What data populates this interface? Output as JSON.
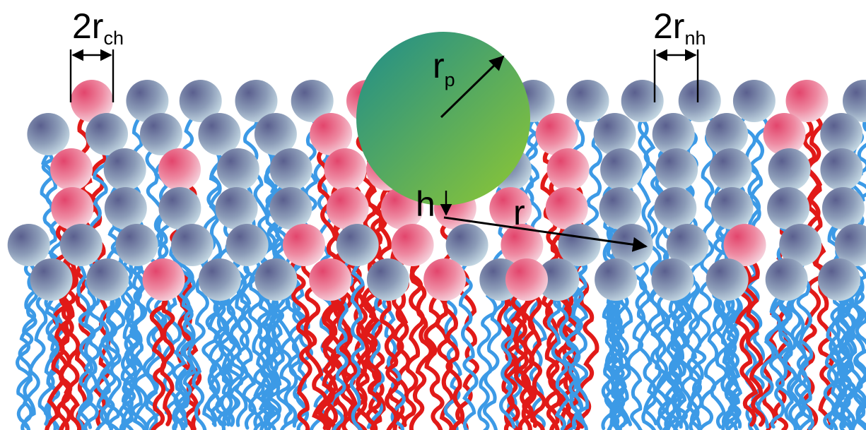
{
  "labels": {
    "charged_head": {
      "main": "2r",
      "sub": "ch"
    },
    "neutral_head": {
      "main": "2r",
      "sub": "nh"
    },
    "particle_radius": {
      "main": "r",
      "sub": "p"
    },
    "height": "h",
    "distance": "r"
  },
  "colors": {
    "neutral_head_light": "#c8dce6",
    "neutral_head_dark": "#5a5f8e",
    "charged_head_light": "#f6d6e0",
    "charged_head_dark": "#e2456c",
    "neutral_tail": "#3c9ae6",
    "charged_tail": "#e11a18",
    "particle_dark": "#1e8c8c",
    "particle_light": "#8fc832"
  }
}
